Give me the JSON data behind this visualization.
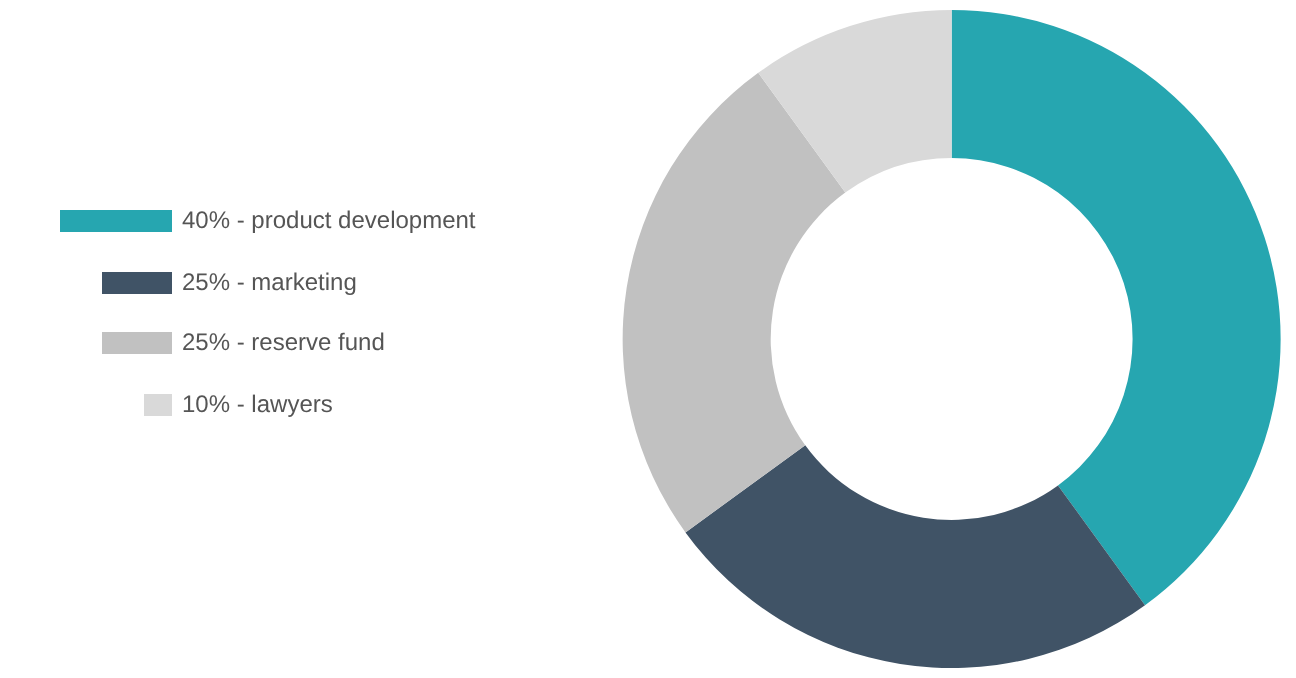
{
  "chart_data": {
    "type": "donut",
    "categories": [
      "40% - product development",
      "25% - marketing",
      "25% - reserve fund",
      "10% - lawyers"
    ],
    "values": [
      40,
      25,
      25,
      10
    ],
    "colors": [
      "#26a6b0",
      "#405366",
      "#c1c1c1",
      "#d9d9d9"
    ],
    "legend": "left"
  }
}
